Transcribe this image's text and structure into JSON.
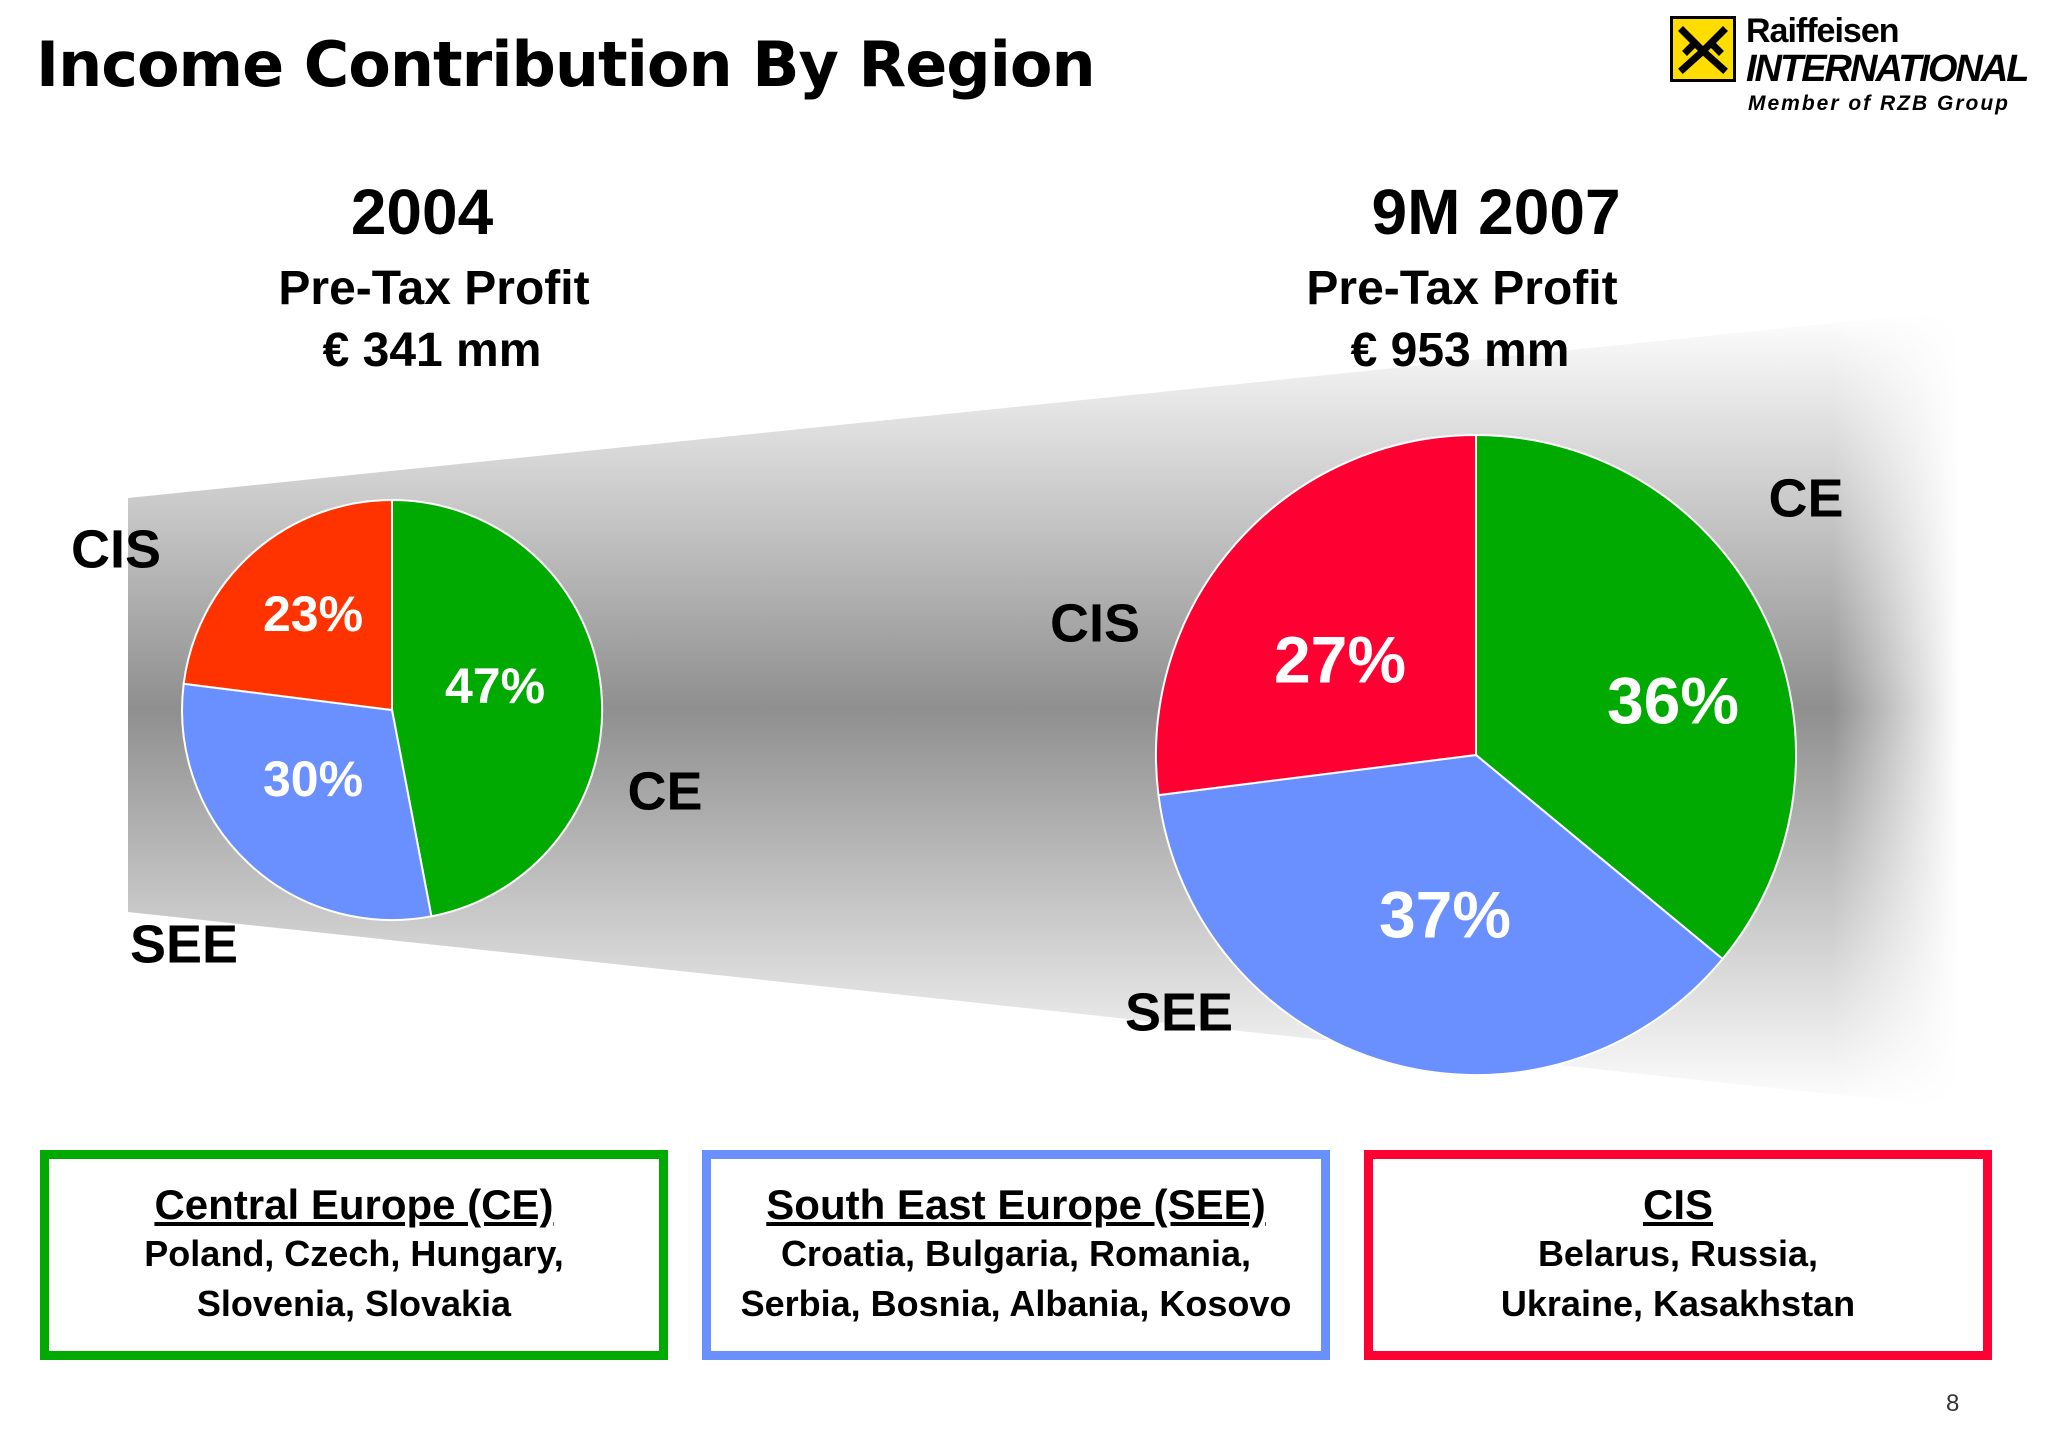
{
  "title": "Income Contribution By Region",
  "logo": {
    "name": "Raiffeisen",
    "subtitle": "INTERNATIONAL",
    "tagline": "Member of RZB Group"
  },
  "colors": {
    "CE": "#00aa00",
    "SEE": "#6a8fff",
    "CIS_2004": "#ff3300",
    "CIS_2007": "#ff0033"
  },
  "chart_data": [
    {
      "type": "pie",
      "title": "2004",
      "subtitle": "Pre-Tax Profit",
      "total": "€ 341 mm",
      "slices": [
        {
          "label": "CE",
          "value": 47,
          "value_label": "47%",
          "color": "#00aa00"
        },
        {
          "label": "SEE",
          "value": 30,
          "value_label": "30%",
          "color": "#6a8fff"
        },
        {
          "label": "CIS",
          "value": 23,
          "value_label": "23%",
          "color": "#ff3300"
        }
      ]
    },
    {
      "type": "pie",
      "title": "9M 2007",
      "subtitle": "Pre-Tax Profit",
      "total": "€ 953 mm",
      "slices": [
        {
          "label": "CE",
          "value": 36,
          "value_label": "36%",
          "color": "#00aa00"
        },
        {
          "label": "SEE",
          "value": 37,
          "value_label": "37%",
          "color": "#6a8fff"
        },
        {
          "label": "CIS",
          "value": 27,
          "value_label": "27%",
          "color": "#ff0033"
        }
      ]
    }
  ],
  "legend": [
    {
      "title": "Central Europe (CE)",
      "lines": [
        "Poland, Czech, Hungary,",
        "Slovenia, Slovakia"
      ],
      "color": "#00aa00"
    },
    {
      "title": "South East Europe (SEE)",
      "lines": [
        "Croatia, Bulgaria, Romania,",
        "Serbia, Bosnia, Albania, Kosovo"
      ],
      "color": "#6a8fff"
    },
    {
      "title": "CIS",
      "lines": [
        "Belarus, Russia,",
        "Ukraine, Kasakhstan"
      ],
      "color": "#ff0033"
    }
  ],
  "page_number": "8"
}
